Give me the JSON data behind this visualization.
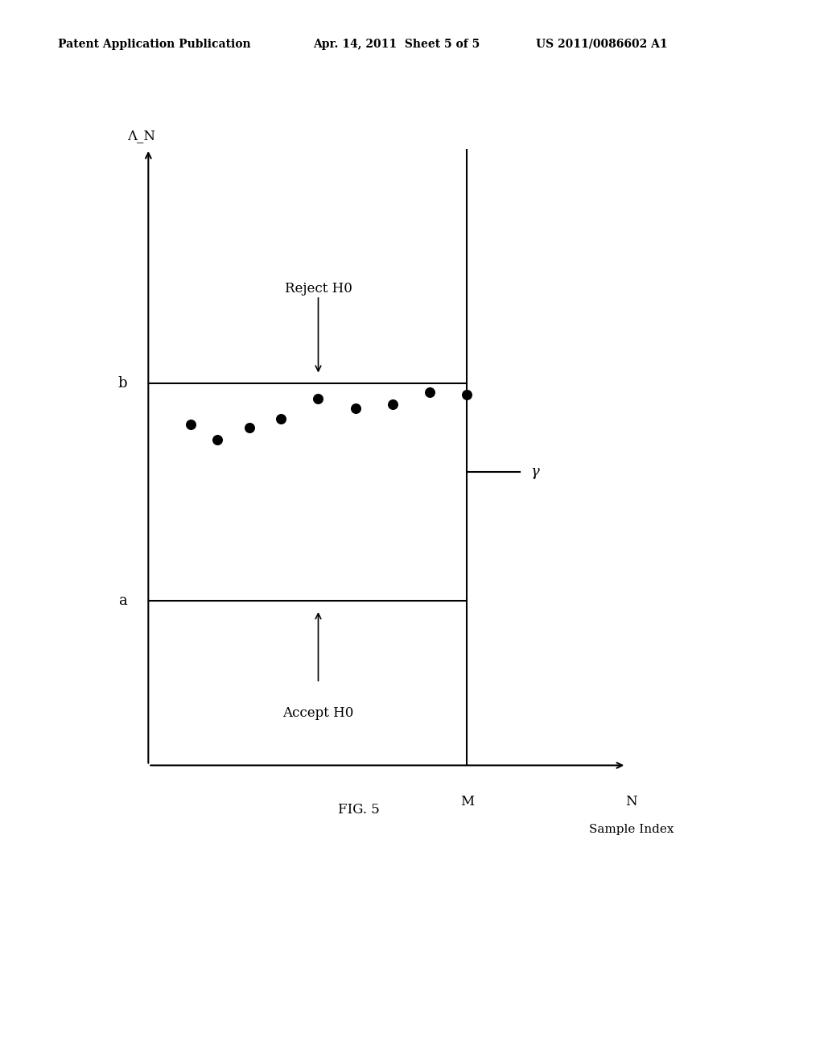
{
  "background_color": "#ffffff",
  "header_left": "Patent Application Publication",
  "header_mid": "Apr. 14, 2011  Sheet 5 of 5",
  "header_right": "US 2011/0086602 A1",
  "header_fontsize": 10,
  "ylabel": "Λ_N",
  "xlabel_M": "M",
  "xlabel_N": "N",
  "xlabel_label": "Sample Index",
  "label_b": "b",
  "label_a": "a",
  "label_gamma": "γ",
  "line_b_y": 0.65,
  "line_a_y": 0.28,
  "line_gamma_y": 0.5,
  "line_M_x": 0.6,
  "reject_text": "Reject H0",
  "accept_text": "Accept H0",
  "dots_x": [
    0.08,
    0.13,
    0.19,
    0.25,
    0.32,
    0.39,
    0.46,
    0.53,
    0.6
  ],
  "dots_y": [
    0.58,
    0.555,
    0.575,
    0.59,
    0.625,
    0.608,
    0.615,
    0.635,
    0.632
  ],
  "dot_size": 70,
  "fig_label": "FIG. 5",
  "fig_label_fontsize": 12,
  "ylim": [
    0.0,
    1.05
  ],
  "xlim": [
    0.0,
    0.9
  ]
}
